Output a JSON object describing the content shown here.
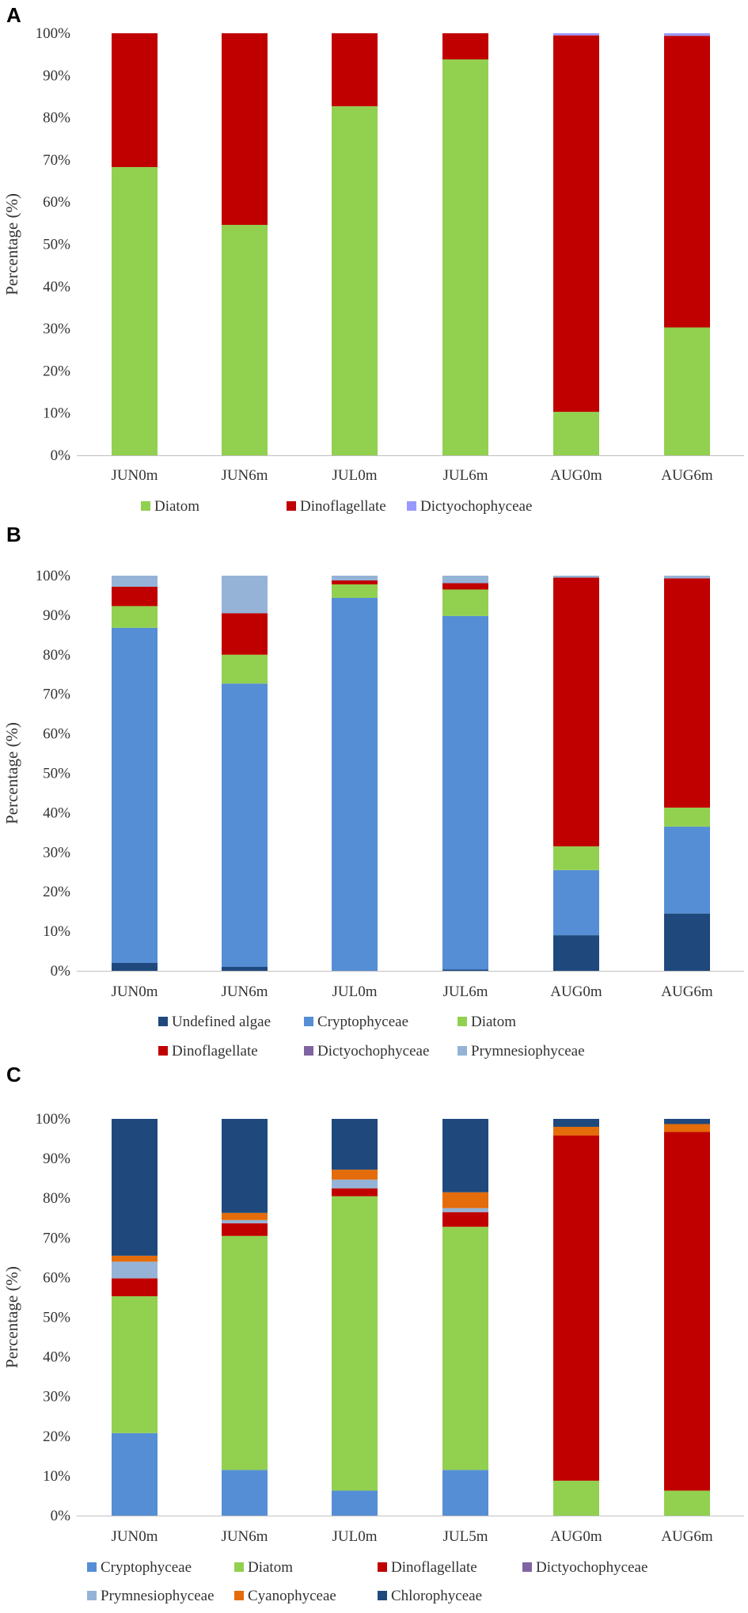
{
  "colors": {
    "Diatom": "#92d050",
    "Dinoflagellate": "#c00000",
    "Dictyochophyceae": "#8064a2",
    "Dictyochophyceae_A": "#9999ff",
    "Cryptophyceae": "#558ed5",
    "Undefined algae": "#1f497d",
    "Chlorophyceae": "#1f497d",
    "Prymnesiophyceae": "#95b3d7",
    "Cyanophyceae": "#e46c0a"
  },
  "chart_data": [
    {
      "panel": "A",
      "type": "bar",
      "stacked": true,
      "ylabel": "Percentage (%)",
      "ylim": [
        0,
        100
      ],
      "yticks": [
        "0%",
        "10%",
        "20%",
        "30%",
        "40%",
        "50%",
        "60%",
        "70%",
        "80%",
        "90%",
        "100%"
      ],
      "categories": [
        "JUN0m",
        "JUN6m",
        "JUL0m",
        "JUL6m",
        "AUG0m",
        "AUG6m"
      ],
      "legend": [
        "Diatom",
        "Dinoflagellate",
        "Dictyochophyceae"
      ],
      "series": [
        {
          "name": "Diatom",
          "colorKey": "Diatom",
          "values": [
            68.3,
            54.6,
            82.7,
            93.8,
            10.3,
            30.3
          ]
        },
        {
          "name": "Dinoflagellate",
          "colorKey": "Dinoflagellate",
          "values": [
            31.7,
            45.4,
            17.3,
            6.2,
            89.2,
            69.1
          ]
        },
        {
          "name": "Dictyochophyceae",
          "colorKey": "Dictyochophyceae_A",
          "values": [
            0,
            0,
            0,
            0,
            0.5,
            0.6
          ]
        }
      ]
    },
    {
      "panel": "B",
      "type": "bar",
      "stacked": true,
      "ylabel": "Percentage (%)",
      "ylim": [
        0,
        100
      ],
      "yticks": [
        "0%",
        "10%",
        "20%",
        "30%",
        "40%",
        "50%",
        "60%",
        "70%",
        "80%",
        "90%",
        "100%"
      ],
      "categories": [
        "JUN0m",
        "JUN6m",
        "JUL0m",
        "JUL6m",
        "AUG0m",
        "AUG6m"
      ],
      "legend": [
        "Undefined algae",
        "Cryptophyceae",
        "Diatom",
        "Dinoflagellate",
        "Dictyochophyceae",
        "Prymnesiophyceae"
      ],
      "series": [
        {
          "name": "Undefined algae",
          "colorKey": "Undefined algae",
          "values": [
            2.0,
            1.0,
            0,
            0.3,
            9.0,
            14.5
          ]
        },
        {
          "name": "Cryptophyceae",
          "colorKey": "Cryptophyceae",
          "values": [
            84.8,
            71.7,
            94.4,
            89.5,
            16.5,
            22.0
          ]
        },
        {
          "name": "Diatom",
          "colorKey": "Diatom",
          "values": [
            5.5,
            7.3,
            3.4,
            6.7,
            6.0,
            4.8
          ]
        },
        {
          "name": "Dinoflagellate",
          "colorKey": "Dinoflagellate",
          "values": [
            4.9,
            10.5,
            1.0,
            1.6,
            68.0,
            58.0
          ]
        },
        {
          "name": "Dictyochophyceae",
          "colorKey": "Dictyochophyceae",
          "values": [
            0,
            0,
            0,
            0,
            0,
            0
          ]
        },
        {
          "name": "Prymnesiophyceae",
          "colorKey": "Prymnesiophyceae",
          "values": [
            2.8,
            9.5,
            1.2,
            1.9,
            0.5,
            0.7
          ]
        }
      ]
    },
    {
      "panel": "C",
      "type": "bar",
      "stacked": true,
      "ylabel": "Percentage (%)",
      "ylim": [
        0,
        100
      ],
      "yticks": [
        "0%",
        "10%",
        "20%",
        "30%",
        "40%",
        "50%",
        "60%",
        "70%",
        "80%",
        "90%",
        "100%"
      ],
      "categories": [
        "JUN0m",
        "JUN6m",
        "JUL0m",
        "JUL5m",
        "AUG0m",
        "AUG6m"
      ],
      "legend": [
        "Cryptophyceae",
        "Diatom",
        "Dinoflagellate",
        "Dictyochophyceae",
        "Prymnesiophyceae",
        "Cyanophyceae",
        "Chlorophyceae"
      ],
      "series": [
        {
          "name": "Cryptophyceae",
          "colorKey": "Cryptophyceae",
          "values": [
            20.8,
            11.5,
            6.3,
            11.5,
            0,
            0
          ]
        },
        {
          "name": "Diatom",
          "colorKey": "Diatom",
          "values": [
            34.5,
            59.0,
            74.2,
            61.3,
            8.8,
            6.3
          ]
        },
        {
          "name": "Dinoflagellate",
          "colorKey": "Dinoflagellate",
          "values": [
            4.5,
            3.2,
            2.0,
            3.7,
            87.0,
            90.4
          ]
        },
        {
          "name": "Dictyochophyceae",
          "colorKey": "Dictyochophyceae",
          "values": [
            0,
            0,
            0,
            0,
            0,
            0
          ]
        },
        {
          "name": "Prymnesiophyceae",
          "colorKey": "Prymnesiophyceae",
          "values": [
            4.2,
            0.8,
            2.2,
            1.0,
            0,
            0
          ]
        },
        {
          "name": "Cyanophyceae",
          "colorKey": "Cyanophyceae",
          "values": [
            1.5,
            1.8,
            2.5,
            4.0,
            2.2,
            2.0
          ]
        },
        {
          "name": "Chlorophyceae",
          "colorKey": "Chlorophyceae",
          "values": [
            34.5,
            23.7,
            12.8,
            18.5,
            2.0,
            1.3
          ]
        }
      ]
    }
  ]
}
